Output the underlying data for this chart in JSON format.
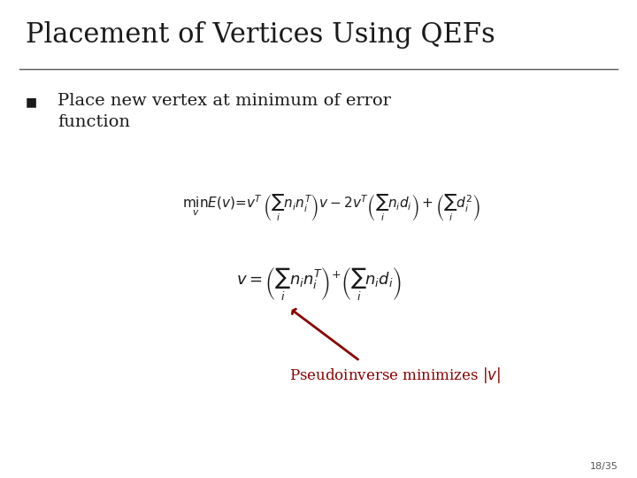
{
  "title": "Placement of Vertices Using QEFs",
  "bullet_text": "Place new vertex at minimum of error\nfunction",
  "page_num": "18/35",
  "bg_color": "#ffffff",
  "title_color": "#1a1a1a",
  "body_color": "#1a1a1a",
  "annotation_color": "#8b0000",
  "arrow_color": "#8b0000",
  "title_fontsize": 22,
  "body_fontsize": 14,
  "eq1_fontsize": 11,
  "eq2_fontsize": 13,
  "annot_fontsize": 12,
  "page_fontsize": 8,
  "line_color": "#555555"
}
